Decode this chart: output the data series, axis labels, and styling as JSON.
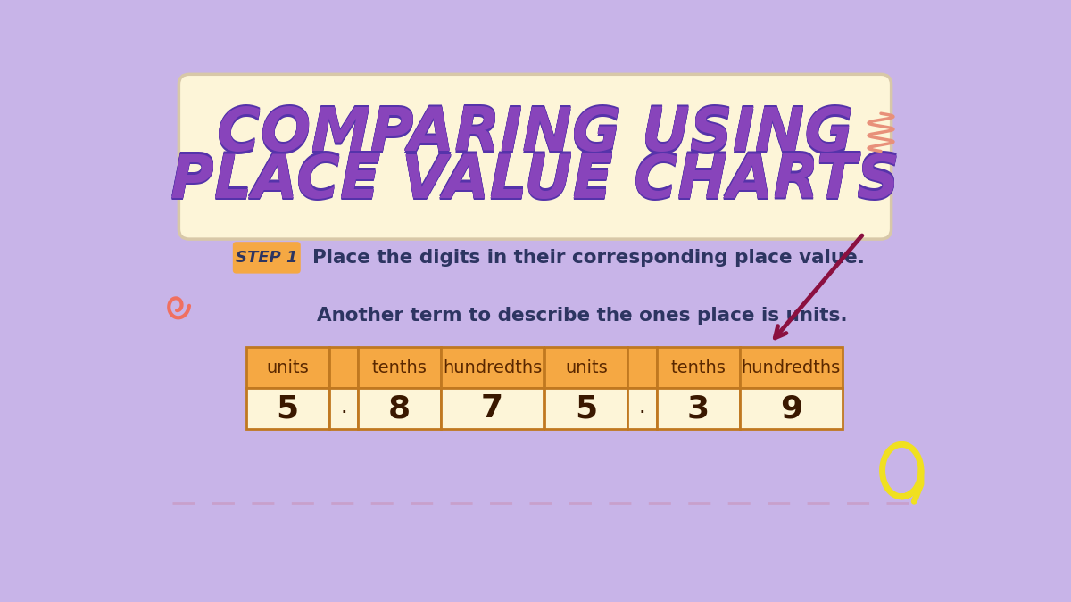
{
  "bg_color": "#c8b4e8",
  "title_box_color": "#fdf5d8",
  "title_box_edge_color": "#d8c8a8",
  "title_line1": "COMPARING USING",
  "title_line2": "PLACE VALUE CHARTS",
  "title_color": "#8844bb",
  "title_stroke_color": "#5533aa",
  "step_box_color": "#f5a843",
  "step_label": "STEP 1",
  "step_label_color": "#2d3561",
  "step_text": "Place the digits in their corresponding place value.",
  "step_text_color": "#2d3561",
  "note_text": "Another term to describe the ones place is units.",
  "note_text_color": "#2d3561",
  "table_header_color": "#f5a843",
  "table_body_color": "#fdf5d8",
  "table_border_color": "#c07820",
  "table1_headers": [
    "units",
    "",
    "tenths",
    "hundredths"
  ],
  "table1_values": [
    "5",
    ".",
    "8",
    "7"
  ],
  "table2_headers": [
    "units",
    "",
    "tenths",
    "hundredths"
  ],
  "table2_values": [
    "5",
    ".",
    "3",
    "9"
  ],
  "table_header_text_color": "#5a2800",
  "table_value_text_color": "#3a1800",
  "dashed_line_color": "#c8a0cc",
  "arrow_color": "#8b1040",
  "squiggle_top_right_color": "#e8907a",
  "squiggle_left_color": "#f07060",
  "squiggle_bottom_right_color": "#f0e020",
  "dark_arrow_color": "#8b1040"
}
